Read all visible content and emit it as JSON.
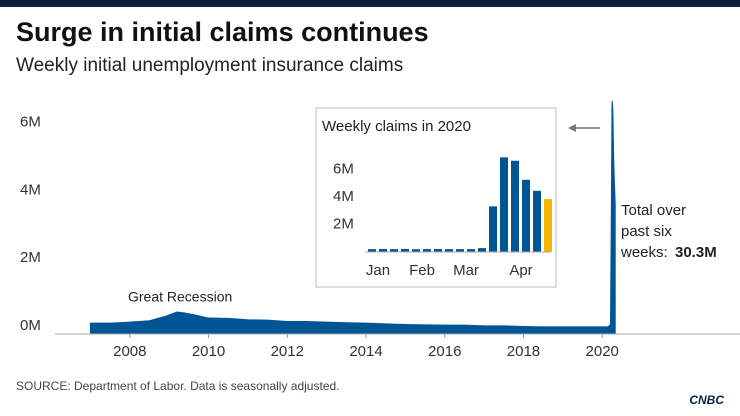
{
  "chart_data": [
    {
      "type": "area",
      "title": "Surge in initial claims continues",
      "subtitle": "Weekly initial unemployment insurance claims",
      "source": "SOURCE: Department of Labor. Data is seasonally adjusted.",
      "logo": "CNBC",
      "color": "#005594",
      "x": [
        2007.0,
        2007.5,
        2008.0,
        2008.5,
        2008.9,
        2009.2,
        2009.4,
        2009.7,
        2010.0,
        2010.5,
        2011.0,
        2011.5,
        2012.0,
        2012.5,
        2013.0,
        2013.5,
        2014.0,
        2014.5,
        2015.0,
        2015.5,
        2016.0,
        2016.5,
        2017.0,
        2017.5,
        2018.0,
        2018.5,
        2019.0,
        2019.5,
        2020.15,
        2020.21,
        2020.23,
        2020.25,
        2020.27,
        2020.29,
        2020.31,
        2020.33
      ],
      "values": [
        0.32,
        0.32,
        0.35,
        0.39,
        0.52,
        0.65,
        0.62,
        0.55,
        0.47,
        0.46,
        0.42,
        0.41,
        0.37,
        0.37,
        0.35,
        0.33,
        0.32,
        0.3,
        0.28,
        0.27,
        0.26,
        0.26,
        0.24,
        0.24,
        0.22,
        0.21,
        0.21,
        0.21,
        0.21,
        0.28,
        3.31,
        6.87,
        6.62,
        5.24,
        4.44,
        3.84
      ],
      "xlim": [
        2006.1,
        2023.5
      ],
      "xticks": [
        2008,
        2010,
        2012,
        2014,
        2016,
        2018,
        2020
      ],
      "ylim": [
        0,
        6.9
      ],
      "yticks": [
        {
          "value": 0,
          "label": "0M"
        },
        {
          "value": 2,
          "label": "2M"
        },
        {
          "value": 4,
          "label": "4M"
        },
        {
          "value": 6,
          "label": "6M"
        }
      ],
      "annotation_recession": "Great Recession",
      "annotation_lines": [
        "Total over",
        "past six",
        "weeks:"
      ],
      "annotation_value": "30.3M"
    },
    {
      "type": "bar",
      "title": "Weekly claims in 2020",
      "categories": [
        "Jan",
        null,
        null,
        null,
        "Feb",
        null,
        null,
        null,
        "Mar",
        null,
        null,
        null,
        null,
        "Apr",
        null,
        null,
        null
      ],
      "values": [
        0.21,
        0.22,
        0.21,
        0.22,
        0.2,
        0.21,
        0.22,
        0.21,
        0.21,
        0.21,
        0.28,
        3.31,
        6.87,
        6.62,
        5.24,
        4.44,
        3.84
      ],
      "colors": [
        "#005594",
        "#005594",
        "#005594",
        "#005594",
        "#005594",
        "#005594",
        "#005594",
        "#005594",
        "#005594",
        "#005594",
        "#005594",
        "#005594",
        "#005594",
        "#005594",
        "#005594",
        "#005594",
        "#f5b400"
      ],
      "ylim": [
        0,
        7.4
      ],
      "yticks": [
        {
          "value": 2,
          "label": "2M"
        },
        {
          "value": 4,
          "label": "4M"
        },
        {
          "value": 6,
          "label": "6M"
        }
      ]
    }
  ]
}
